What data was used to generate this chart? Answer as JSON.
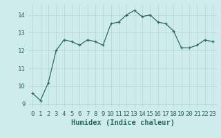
{
  "x": [
    0,
    1,
    2,
    3,
    4,
    5,
    6,
    7,
    8,
    9,
    10,
    11,
    12,
    13,
    14,
    15,
    16,
    17,
    18,
    19,
    20,
    21,
    22,
    23
  ],
  "y": [
    9.6,
    9.2,
    10.2,
    12.0,
    12.6,
    12.5,
    12.3,
    12.6,
    12.5,
    12.3,
    13.5,
    13.6,
    14.0,
    14.25,
    13.9,
    14.0,
    13.6,
    13.5,
    13.1,
    12.15,
    12.15,
    12.3,
    12.6,
    12.5
  ],
  "line_color": "#2d6b5e",
  "bg_color": "#ceecea",
  "grid_color": "#b8dbd8",
  "xlabel": "Humidex (Indice chaleur)",
  "ylim": [
    8.8,
    14.6
  ],
  "xlim": [
    -0.5,
    23.5
  ],
  "yticks": [
    9,
    10,
    11,
    12,
    13,
    14
  ],
  "xticks": [
    0,
    1,
    2,
    3,
    4,
    5,
    6,
    7,
    8,
    9,
    10,
    11,
    12,
    13,
    14,
    15,
    16,
    17,
    18,
    19,
    20,
    21,
    22,
    23
  ],
  "tick_fontsize": 6.5,
  "xlabel_fontsize": 7.5
}
